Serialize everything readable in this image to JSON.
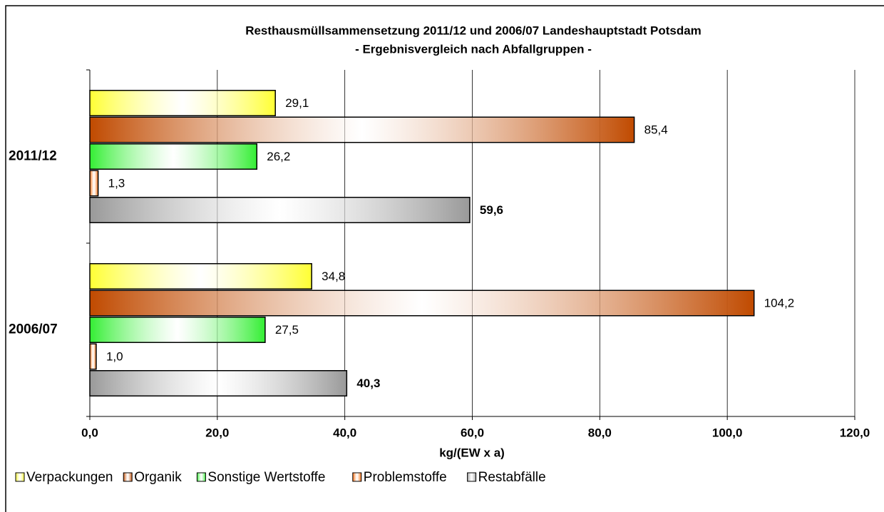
{
  "chart_data": {
    "type": "hbar",
    "title": "Resthausmüllsammensetzung 2011/12 und 2006/07 Landeshauptstadt Potsdam",
    "subtitle": "- Ergebnisvergleich nach Abfallgruppen -",
    "xlabel": "kg/(EW x a)",
    "categories": [
      "2011/12",
      "2006/07"
    ],
    "series": [
      {
        "name": "Verpackungen",
        "color": "#ffff33",
        "values": [
          29.1,
          34.8
        ],
        "value_labels": [
          "29,1",
          "34,8"
        ]
      },
      {
        "name": "Organik",
        "color": "#c04a00",
        "values": [
          85.4,
          104.2
        ],
        "value_labels": [
          "85,4",
          "104,2"
        ]
      },
      {
        "name": "Sonstige Wertstoffe",
        "color": "#33ee33",
        "values": [
          26.2,
          27.5
        ],
        "value_labels": [
          "26,2",
          "27,5"
        ]
      },
      {
        "name": "Problemstoffe",
        "color": "#ff6600",
        "values": [
          1.3,
          1.0
        ],
        "value_labels": [
          "1,3",
          "1,0"
        ]
      },
      {
        "name": "Restabfälle",
        "color": "#999999",
        "values": [
          59.6,
          40.3
        ],
        "value_labels": [
          "59,6",
          "40,3"
        ],
        "label_bold": true
      }
    ],
    "xlim": [
      0,
      120
    ],
    "xticks": [
      {
        "value": 0,
        "label": "0,0"
      },
      {
        "value": 20,
        "label": "20,0"
      },
      {
        "value": 40,
        "label": "40,0"
      },
      {
        "value": 60,
        "label": "60,0"
      },
      {
        "value": 80,
        "label": "80,0"
      },
      {
        "value": 100,
        "label": "100,0"
      },
      {
        "value": 120,
        "label": "120,0"
      }
    ],
    "grid": true,
    "legend": "bottom"
  }
}
